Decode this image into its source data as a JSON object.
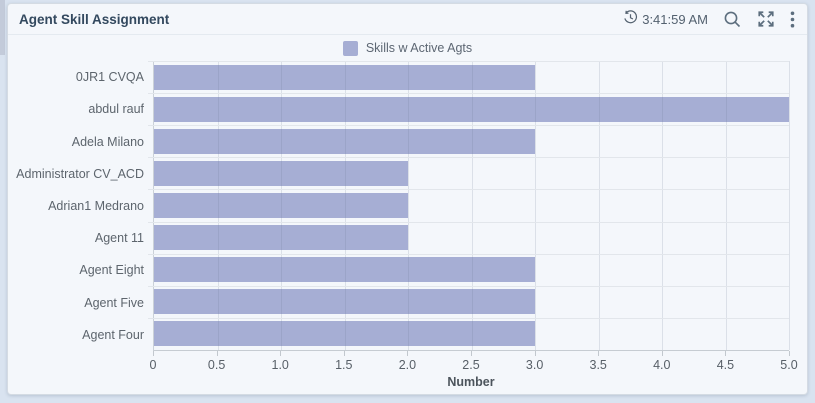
{
  "header": {
    "title": "Agent Skill Assignment",
    "timestamp": "3:41:59 AM"
  },
  "colors": {
    "bar": "#a6aed4",
    "page_background": "#d9e3f0",
    "card_background": "#f4f7fb",
    "icon": "#5c6e7e"
  },
  "chart_data": {
    "type": "bar",
    "orientation": "horizontal",
    "legend": [
      "Skills w Active Agts"
    ],
    "legend_position": "top-center",
    "categories": [
      "0JR1 CVQA",
      "abdul rauf",
      "Adela Milano",
      "Administrator CV_ACD",
      "Adrian1 Medrano",
      "Agent 11",
      "Agent Eight",
      "Agent Five",
      "Agent Four"
    ],
    "series": [
      {
        "name": "Skills w Active Agts",
        "values": [
          3,
          5,
          3,
          2,
          2,
          2,
          3,
          3,
          3
        ]
      }
    ],
    "xlabel": "Number",
    "ylabel": "",
    "xlim": [
      0,
      5
    ],
    "xticks": [
      "0",
      "0.5",
      "1.0",
      "1.5",
      "2.0",
      "2.5",
      "3.0",
      "3.5",
      "4.0",
      "4.5",
      "5.0"
    ],
    "grid": true
  }
}
